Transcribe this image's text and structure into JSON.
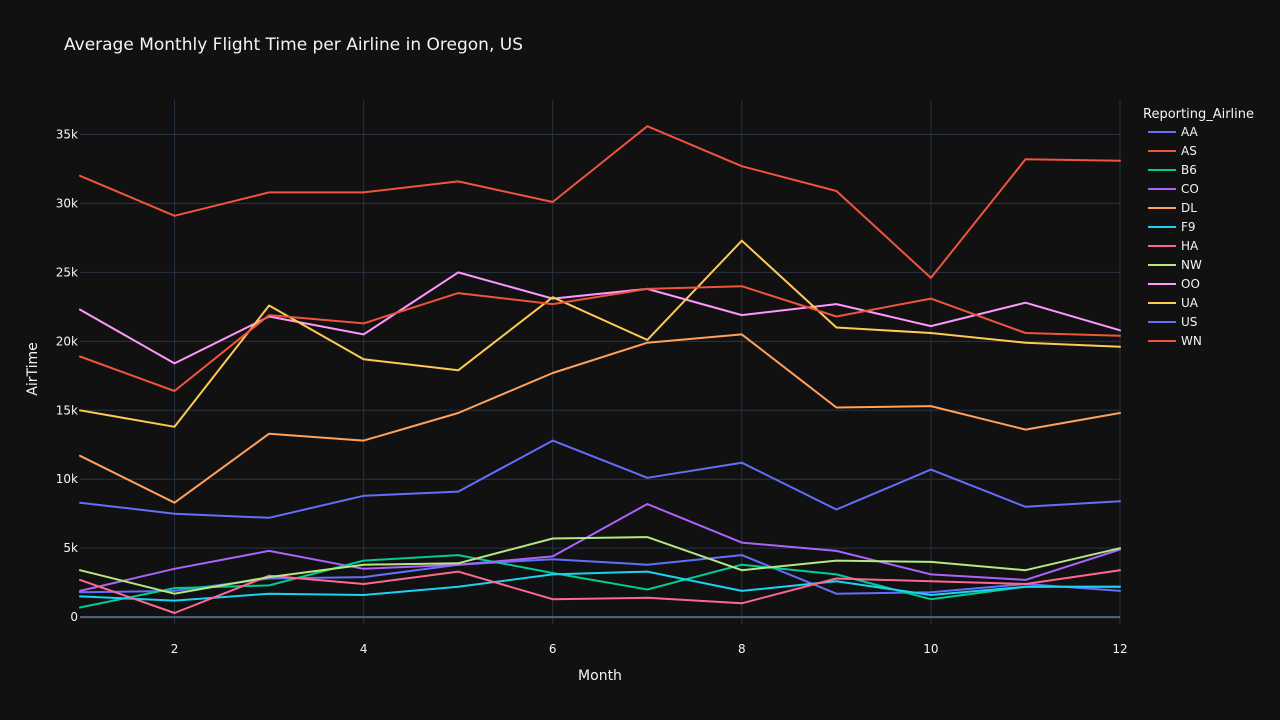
{
  "chart_data": {
    "type": "line",
    "title": "Average Monthly Flight Time per Airline in Oregon, US",
    "xlabel": "Month",
    "ylabel": "AirTime",
    "xlim": [
      1,
      12
    ],
    "ylim": [
      -500,
      37500
    ],
    "x_ticks": [
      2,
      4,
      6,
      8,
      10,
      12
    ],
    "y_ticks": [
      0,
      5000,
      10000,
      15000,
      20000,
      25000,
      30000,
      35000
    ],
    "y_tick_labels": [
      "0",
      "5k",
      "10k",
      "15k",
      "20k",
      "25k",
      "30k",
      "35k"
    ],
    "grid": true,
    "legend_title": "Reporting_Airline",
    "legend_position": "right",
    "x": [
      1,
      2,
      3,
      4,
      5,
      6,
      7,
      8,
      9,
      10,
      11,
      12
    ],
    "series": [
      {
        "name": "AA",
        "color": "#636efa",
        "values": [
          1800,
          1900,
          2800,
          2900,
          3800,
          4200,
          3800,
          4500,
          1700,
          1800,
          2400,
          1900
        ]
      },
      {
        "name": "AS",
        "color": "#EF553B",
        "values": [
          32000,
          29100,
          30800,
          30800,
          31600,
          30100,
          35600,
          32700,
          30900,
          24600,
          33200,
          33100
        ]
      },
      {
        "name": "B6",
        "color": "#00cc96",
        "values": [
          700,
          2100,
          2300,
          4100,
          4500,
          3200,
          2000,
          3800,
          3100,
          1300,
          2200,
          2200
        ]
      },
      {
        "name": "CO",
        "color": "#ab63fa",
        "values": [
          1900,
          3500,
          4800,
          3500,
          3800,
          4400,
          8200,
          5400,
          4800,
          3100,
          2700,
          4900
        ]
      },
      {
        "name": "DL",
        "color": "#FFA15A",
        "values": [
          11700,
          8300,
          13300,
          12800,
          14800,
          17700,
          19900,
          20500,
          15200,
          15300,
          13600,
          14800
        ]
      },
      {
        "name": "F9",
        "color": "#19d3f3",
        "values": [
          1500,
          1200,
          1700,
          1600,
          2200,
          3100,
          3300,
          1900,
          2600,
          1600,
          2200,
          2200
        ]
      },
      {
        "name": "HA",
        "color": "#FF6692",
        "values": [
          2700,
          300,
          3000,
          2400,
          3300,
          1300,
          1400,
          1000,
          2800,
          2600,
          2400,
          3400
        ]
      },
      {
        "name": "NW",
        "color": "#B6E880",
        "values": [
          3400,
          1700,
          2900,
          3800,
          3900,
          5700,
          5800,
          3400,
          4100,
          4000,
          3400,
          5000
        ]
      },
      {
        "name": "OO",
        "color": "#FF97FF",
        "values": [
          22300,
          18400,
          21800,
          20500,
          25000,
          23100,
          23800,
          21900,
          22700,
          21100,
          22800,
          20800
        ]
      },
      {
        "name": "UA",
        "color": "#FECB52",
        "values": [
          15000,
          13800,
          22600,
          18700,
          17900,
          23200,
          20100,
          27300,
          21000,
          20600,
          19900,
          19600
        ]
      },
      {
        "name": "US",
        "color": "#636efa",
        "values": [
          8300,
          7500,
          7200,
          8800,
          9100,
          12800,
          10100,
          11200,
          7800,
          10700,
          8000,
          8400
        ]
      },
      {
        "name": "WN",
        "color": "#EF553B",
        "values": [
          18900,
          16400,
          21900,
          21300,
          23500,
          22700,
          23800,
          24000,
          21800,
          23100,
          20600,
          20400
        ]
      }
    ]
  }
}
